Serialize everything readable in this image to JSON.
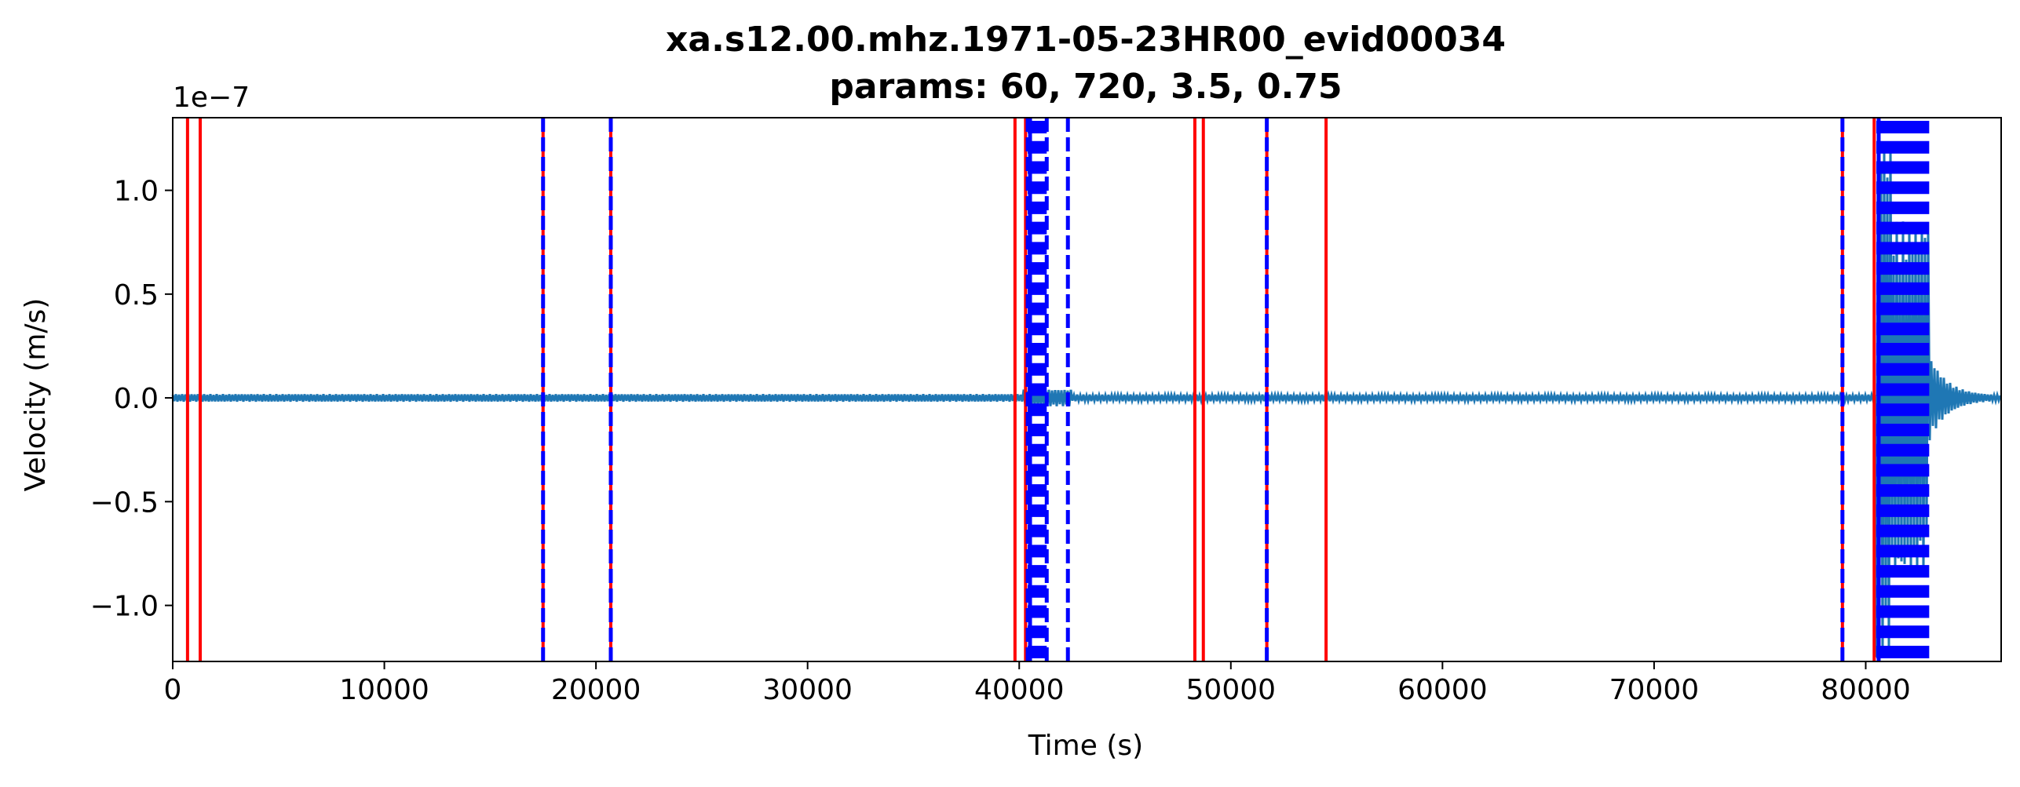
{
  "chart_data": {
    "type": "line",
    "title": "xa.s12.00.mhz.1971-05-23HR00_evid00034",
    "subtitle": "params: 60, 720, 3.5, 0.75",
    "xlabel": "Time (s)",
    "ylabel": "Velocity (m/s)",
    "y_offset_label": "1e−7",
    "xlim": [
      0,
      86400
    ],
    "ylim": [
      -1.27,
      1.35
    ],
    "x_ticks": [
      0,
      10000,
      20000,
      30000,
      40000,
      50000,
      60000,
      70000,
      80000
    ],
    "x_tick_labels": [
      "0",
      "10000",
      "20000",
      "30000",
      "40000",
      "50000",
      "60000",
      "70000",
      "80000"
    ],
    "y_ticks": [
      -1.0,
      -0.5,
      0.0,
      0.5,
      1.0
    ],
    "y_tick_labels": [
      "−1.0",
      "−0.5",
      "0.0",
      "0.5",
      "1.0"
    ],
    "grid": false,
    "series": [
      {
        "color": "#1f77b4",
        "segments": [
          {
            "x_start": 0,
            "x_end": 40200,
            "amplitude": 0.018
          },
          {
            "x_start": 40200,
            "x_end": 42500,
            "amplitude": 0.04
          },
          {
            "x_start": 42500,
            "x_end": 80500,
            "amplitude": 0.016
          },
          {
            "x_start": 80500,
            "x_end": 81200,
            "amplitude": 1.25
          },
          {
            "x_start": 81200,
            "x_end": 83000,
            "amplitude": 0.85
          },
          {
            "x_start": 83000,
            "x_end": 86400,
            "amplitude": 0.2,
            "decay": true
          }
        ]
      }
    ],
    "trigger_on_lines": {
      "color": "#ff0000",
      "x": [
        700,
        1300,
        17500,
        20700,
        39800,
        40300,
        48300,
        48700,
        51700,
        54500,
        78900,
        80400
      ]
    },
    "trigger_off_lines": {
      "color": "#0000ff",
      "style": "dashed",
      "x": [
        17500,
        20700,
        40400,
        41300,
        42300,
        51700,
        78900
      ],
      "dense_bands": [
        {
          "x_start": 40400,
          "x_end": 41300
        },
        {
          "x_start": 80500,
          "x_end": 83000
        }
      ]
    }
  }
}
